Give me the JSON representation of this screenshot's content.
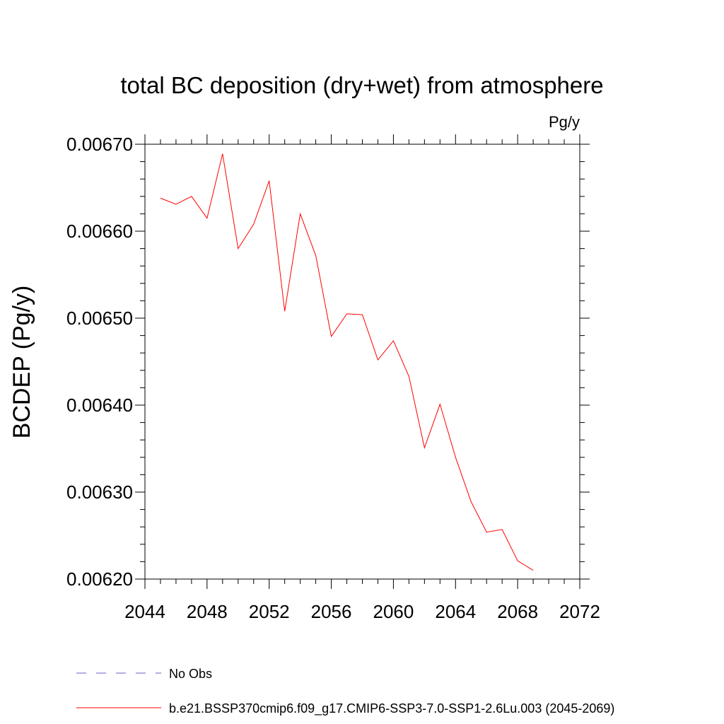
{
  "chart_data": {
    "type": "line",
    "title": "total BC deposition (dry+wet) from atmosphere",
    "units_label": "Pg/y",
    "xlabel": "",
    "ylabel": "BCDEP  (Pg/y)",
    "xlim": [
      2044,
      2072
    ],
    "ylim": [
      0.0062,
      0.0067
    ],
    "x_ticks": [
      2044,
      2048,
      2052,
      2056,
      2060,
      2064,
      2068,
      2072
    ],
    "x_tick_labels": [
      "2044",
      "2048",
      "2052",
      "2056",
      "2060",
      "2064",
      "2068",
      "2072"
    ],
    "y_ticks": [
      0.0062,
      0.0063,
      0.0064,
      0.0065,
      0.0066,
      0.0067
    ],
    "y_tick_labels": [
      "0.00620",
      "0.00630",
      "0.00640",
      "0.00650",
      "0.00660",
      "0.00670"
    ],
    "grid": false,
    "legend_position": "bottom",
    "series": [
      {
        "name": "b.e21.BSSP370cmip6.f09_g17.CMIP6-SSP3-7.0-SSP1-2.6Lu.003 (2045-2069)",
        "color": "#ff0000",
        "style": "solid",
        "x": [
          2045,
          2046,
          2047,
          2048,
          2049,
          2050,
          2051,
          2052,
          2053,
          2054,
          2055,
          2056,
          2057,
          2058,
          2059,
          2060,
          2061,
          2062,
          2063,
          2064,
          2065,
          2066,
          2067,
          2068,
          2069
        ],
        "values": [
          0.006638,
          0.006631,
          0.00664,
          0.006615,
          0.006689,
          0.00658,
          0.006608,
          0.006658,
          0.006508,
          0.00662,
          0.006572,
          0.006479,
          0.006505,
          0.006504,
          0.006452,
          0.006474,
          0.006433,
          0.006351,
          0.006401,
          0.00634,
          0.006289,
          0.006254,
          0.006257,
          0.006221,
          0.00621
        ]
      }
    ],
    "legend": [
      {
        "label": "No Obs",
        "color": "#6b5cc4",
        "style": "dashed"
      },
      {
        "label": "b.e21.BSSP370cmip6.f09_g17.CMIP6-SSP3-7.0-SSP1-2.6Lu.003 (2045-2069)",
        "color": "#ff0000",
        "style": "solid"
      }
    ]
  }
}
